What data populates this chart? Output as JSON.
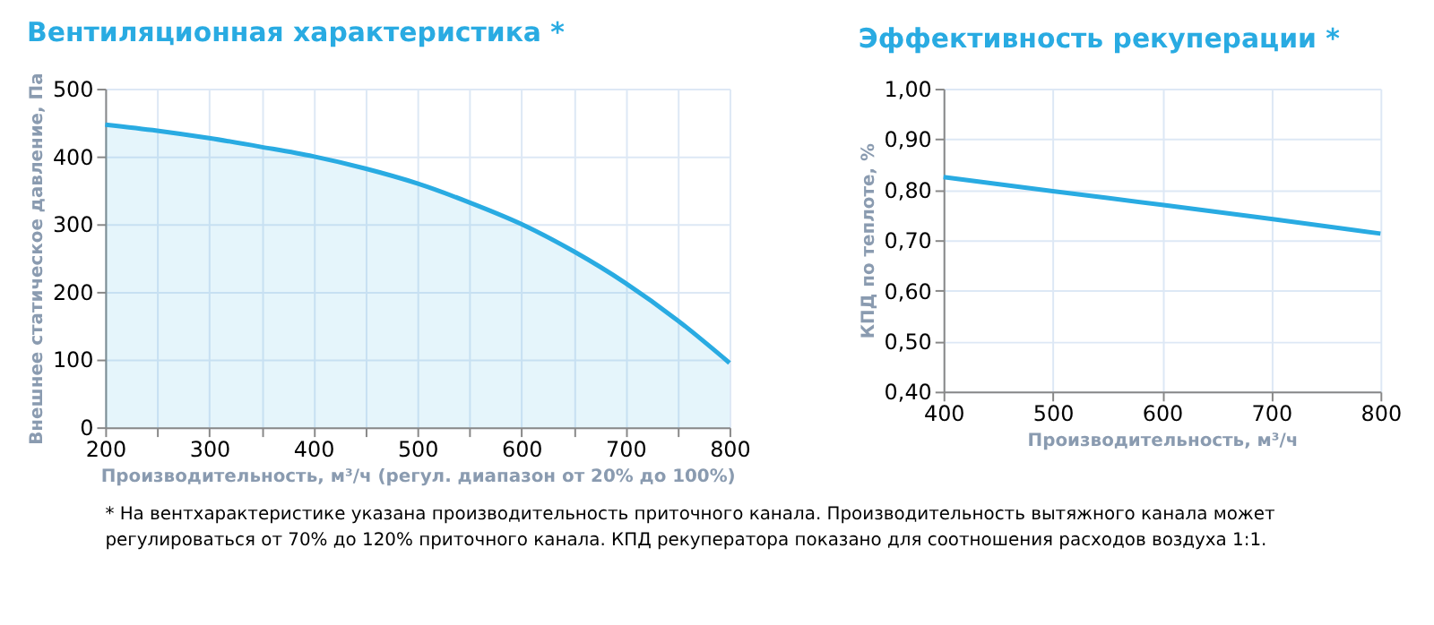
{
  "chart_data": [
    {
      "type": "area",
      "title": "Вентиляционная характеристика *",
      "xlabel": "Производительность, м³/ч (регул. диапазон от 20% до 100%)",
      "ylabel": "Внешнее статическое давление, Па",
      "x": [
        200,
        250,
        300,
        350,
        400,
        450,
        500,
        550,
        600,
        650,
        700,
        750,
        800
      ],
      "series": [
        {
          "color": "#29abe2",
          "values": [
            447,
            438,
            427,
            414,
            400,
            382,
            360,
            332,
            300,
            260,
            213,
            158,
            95
          ]
        }
      ],
      "xlim": [
        200,
        800
      ],
      "xticks": [
        200,
        {
          "value": 250,
          "label": null
        },
        300,
        {
          "value": 350,
          "label": null
        },
        400,
        {
          "value": 450,
          "label": null
        },
        500,
        {
          "value": 550,
          "label": null
        },
        600,
        {
          "value": 650,
          "label": null
        },
        700,
        {
          "value": 750,
          "label": null
        },
        800
      ],
      "ylim": [
        0,
        500
      ],
      "yticks": [
        0,
        100,
        200,
        300,
        400,
        500
      ],
      "grid": true,
      "annotations": [
        "* На вентхарактеристике указана производительность приточного канала. Производительность вытяжного канала может",
        "регулироваться от 70% до 120% приточного канала. КПД рекуператора показано для соотношения расходов воздуха 1:1."
      ]
    },
    {
      "type": "line",
      "title": "Эффективность рекуперации *",
      "xlabel": "Производительность, м³/ч",
      "ylabel": "КПД по теплоте, %",
      "x": [
        400,
        500,
        600,
        700,
        800
      ],
      "series": [
        {
          "color": "#29abe2",
          "values": [
            0.825,
            0.797,
            0.77,
            0.742,
            0.713
          ]
        }
      ],
      "xlim": [
        400,
        800
      ],
      "xticks": [
        400,
        500,
        600,
        700,
        800
      ],
      "ylim": [
        0.4,
        1.0
      ],
      "yticks": [
        {
          "value": 0.4,
          "label": "0,40"
        },
        {
          "value": 0.5,
          "label": "0,50"
        },
        {
          "value": 0.6,
          "label": "0,60"
        },
        {
          "value": 0.7,
          "label": "0,70"
        },
        {
          "value": 0.8,
          "label": "0,80"
        },
        {
          "value": 0.9,
          "label": "0,90"
        },
        {
          "value": 1.0,
          "label": "1,00"
        }
      ],
      "grid": true
    }
  ]
}
